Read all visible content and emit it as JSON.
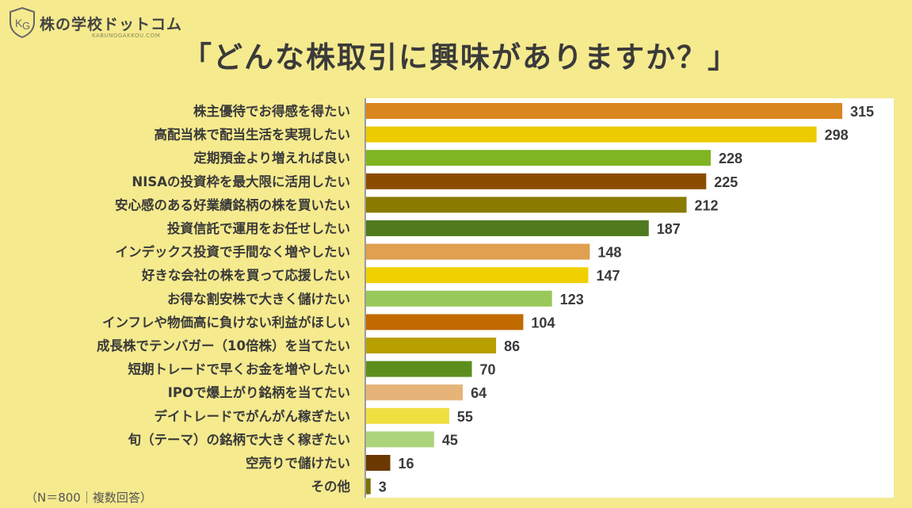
{
  "logo": {
    "name": "株の学校ドットコム",
    "sub": "KABUNOGAKKOU.COM"
  },
  "title": "「どんな株取引に興味がありますか？」",
  "footnote": "（N＝800｜複数回答）",
  "chart_data": {
    "type": "bar",
    "orientation": "horizontal",
    "title": "「どんな株取引に興味がありますか？」",
    "xlim": [
      0,
      315
    ],
    "grid": false,
    "legend": "none",
    "categories": [
      "株主優待でお得感を得たい",
      "高配当株で配当生活を実現したい",
      "定期預金より増えれば良い",
      "NISAの投資枠を最大限に活用したい",
      "安心感のある好業績銘柄の株を買いたい",
      "投資信託で運用をお任せしたい",
      "インデックス投資で手間なく増やしたい",
      "好きな会社の株を買って応援したい",
      "お得な割安株で大きく儲けたい",
      "インフレや物価高に負けない利益がほしい",
      "成長株でテンバガー（10倍株）を当てたい",
      "短期トレードで早くお金を増やしたい",
      "IPOで爆上がり銘柄を当てたい",
      "デイトレードでがんがん稼ぎたい",
      "旬（テーマ）の銘柄で大きく稼ぎたい",
      "空売りで儲けたい",
      "その他"
    ],
    "values": [
      315,
      298,
      228,
      225,
      212,
      187,
      148,
      147,
      123,
      104,
      86,
      70,
      64,
      55,
      45,
      16,
      3
    ],
    "colors": [
      "#d9861f",
      "#eccb00",
      "#7fb523",
      "#8c4c00",
      "#8a7a00",
      "#4f7a1e",
      "#e0a050",
      "#f0d000",
      "#98c95a",
      "#c06a00",
      "#b8a000",
      "#5c8e1e",
      "#e6b479",
      "#f0df40",
      "#acd47c",
      "#6a3800",
      "#7a7000"
    ]
  }
}
